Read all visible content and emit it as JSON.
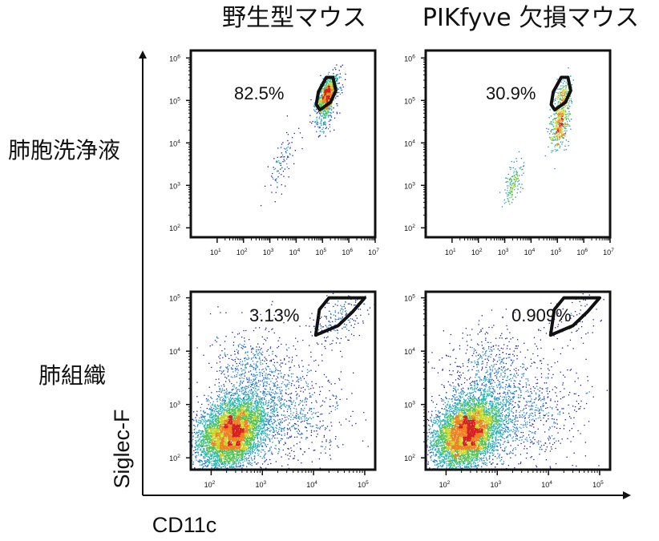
{
  "chart_data": {
    "type": "scatter",
    "subtype": "flow-cytometry-density-plot",
    "column_titles": [
      "野生型マウス",
      "PIKfyve 欠損マウス"
    ],
    "row_labels": [
      "肺胞洗浄液",
      "肺組織"
    ],
    "xlabel": "CD11c",
    "ylabel": "Siglec-F",
    "x_scale": "log",
    "y_scale": "log",
    "panels": [
      {
        "row": 0,
        "col": 0,
        "xlim": [
          1,
          10000000
        ],
        "ylim": [
          60,
          1500000
        ],
        "x_ticks": [
          {
            "b": "10",
            "e": "1"
          },
          {
            "b": "10",
            "e": "2"
          },
          {
            "b": "10",
            "e": "3"
          },
          {
            "b": "10",
            "e": "4"
          },
          {
            "b": "10",
            "e": "5"
          },
          {
            "b": "10",
            "e": "6"
          },
          {
            "b": "10",
            "e": "7"
          }
        ],
        "y_ticks": [
          {
            "b": "10",
            "e": "2"
          },
          {
            "b": "10",
            "e": "3"
          },
          {
            "b": "10",
            "e": "4"
          },
          {
            "b": "10",
            "e": "5"
          },
          {
            "b": "10",
            "e": "6"
          }
        ],
        "gate_label": "82.5%",
        "gate_polygon": [
          [
            79000,
            60000
          ],
          [
            200000,
            90000
          ],
          [
            320000,
            170000
          ],
          [
            250000,
            350000
          ],
          [
            140000,
            350000
          ],
          [
            70000,
            160000
          ],
          [
            58000,
            80000
          ]
        ],
        "populations": [
          {
            "cx": 150000,
            "cy": 140000,
            "sx": 0.2,
            "sy": 0.22,
            "rho": 0.5,
            "n": 900
          },
          {
            "cx": 110000,
            "cy": 45000,
            "sx": 0.2,
            "sy": 0.25,
            "rho": 0.3,
            "n": 150
          },
          {
            "cx": 2500,
            "cy": 3000,
            "sx": 0.28,
            "sy": 0.35,
            "rho": 0.7,
            "n": 100
          }
        ]
      },
      {
        "row": 0,
        "col": 1,
        "xlim": [
          1,
          10000000
        ],
        "ylim": [
          60,
          1500000
        ],
        "x_ticks": [
          {
            "b": "10",
            "e": "1"
          },
          {
            "b": "10",
            "e": "2"
          },
          {
            "b": "10",
            "e": "3"
          },
          {
            "b": "10",
            "e": "4"
          },
          {
            "b": "10",
            "e": "5"
          },
          {
            "b": "10",
            "e": "6"
          },
          {
            "b": "10",
            "e": "7"
          }
        ],
        "y_ticks": [
          {
            "b": "10",
            "e": "2"
          },
          {
            "b": "10",
            "e": "3"
          },
          {
            "b": "10",
            "e": "4"
          },
          {
            "b": "10",
            "e": "5"
          },
          {
            "b": "10",
            "e": "6"
          }
        ],
        "gate_label": "30.9%",
        "gate_polygon": [
          [
            79000,
            60000
          ],
          [
            200000,
            90000
          ],
          [
            320000,
            170000
          ],
          [
            250000,
            350000
          ],
          [
            140000,
            350000
          ],
          [
            70000,
            160000
          ],
          [
            58000,
            80000
          ]
        ],
        "populations": [
          {
            "cx": 120000,
            "cy": 30000,
            "sx": 0.18,
            "sy": 0.3,
            "rho": 0.3,
            "n": 450
          },
          {
            "cx": 170000,
            "cy": 150000,
            "sx": 0.15,
            "sy": 0.2,
            "rho": 0.4,
            "n": 150
          },
          {
            "cx": 2000,
            "cy": 1200,
            "sx": 0.18,
            "sy": 0.25,
            "rho": 0.6,
            "n": 150
          }
        ]
      },
      {
        "row": 1,
        "col": 0,
        "xlim": [
          40,
          160000
        ],
        "ylim": [
          60,
          130000
        ],
        "x_ticks": [
          {
            "b": "10",
            "e": "2"
          },
          {
            "b": "10",
            "e": "3"
          },
          {
            "b": "10",
            "e": "4"
          },
          {
            "b": "10",
            "e": "5"
          }
        ],
        "y_ticks": [
          {
            "b": "10",
            "e": "2"
          },
          {
            "b": "10",
            "e": "3"
          },
          {
            "b": "10",
            "e": "4"
          },
          {
            "b": "10",
            "e": "5"
          }
        ],
        "gate_label": "3.13%",
        "gate_polygon": [
          [
            11000,
            20000
          ],
          [
            30000,
            30000
          ],
          [
            58000,
            55000
          ],
          [
            100000,
            100000
          ],
          [
            100000,
            100000
          ],
          [
            20000,
            100000
          ],
          [
            13000,
            60000
          ]
        ],
        "populations": [
          {
            "cx": 250,
            "cy": 300,
            "sx": 0.33,
            "sy": 0.33,
            "rho": 0.3,
            "n": 6500
          },
          {
            "cx": 600,
            "cy": 4000,
            "sx": 0.4,
            "sy": 0.45,
            "rho": 0.0,
            "n": 500
          },
          {
            "cx": 30000,
            "cy": 40000,
            "sx": 0.3,
            "sy": 0.25,
            "rho": 0.5,
            "n": 200
          },
          {
            "cx": 3000,
            "cy": 800,
            "sx": 0.55,
            "sy": 0.5,
            "rho": 0.0,
            "n": 800
          }
        ]
      },
      {
        "row": 1,
        "col": 1,
        "xlim": [
          40,
          160000
        ],
        "ylim": [
          60,
          130000
        ],
        "x_ticks": [
          {
            "b": "10",
            "e": "2"
          },
          {
            "b": "10",
            "e": "3"
          },
          {
            "b": "10",
            "e": "4"
          },
          {
            "b": "10",
            "e": "5"
          }
        ],
        "y_ticks": [
          {
            "b": "10",
            "e": "2"
          },
          {
            "b": "10",
            "e": "3"
          },
          {
            "b": "10",
            "e": "4"
          },
          {
            "b": "10",
            "e": "5"
          }
        ],
        "gate_label": "0.909%",
        "gate_polygon": [
          [
            11000,
            20000
          ],
          [
            30000,
            30000
          ],
          [
            58000,
            55000
          ],
          [
            100000,
            100000
          ],
          [
            100000,
            100000
          ],
          [
            20000,
            100000
          ],
          [
            13000,
            60000
          ]
        ],
        "populations": [
          {
            "cx": 250,
            "cy": 300,
            "sx": 0.33,
            "sy": 0.33,
            "rho": 0.3,
            "n": 6500
          },
          {
            "cx": 600,
            "cy": 4000,
            "sx": 0.4,
            "sy": 0.45,
            "rho": 0.0,
            "n": 500
          },
          {
            "cx": 30000,
            "cy": 40000,
            "sx": 0.35,
            "sy": 0.3,
            "rho": 0.3,
            "n": 80
          },
          {
            "cx": 3000,
            "cy": 800,
            "sx": 0.55,
            "sy": 0.5,
            "rho": 0.0,
            "n": 800
          }
        ]
      }
    ],
    "colormap": [
      "#1a1aa6",
      "#1f7fd0",
      "#22b8b0",
      "#4fc24f",
      "#c8d420",
      "#f08020",
      "#d62020"
    ]
  }
}
